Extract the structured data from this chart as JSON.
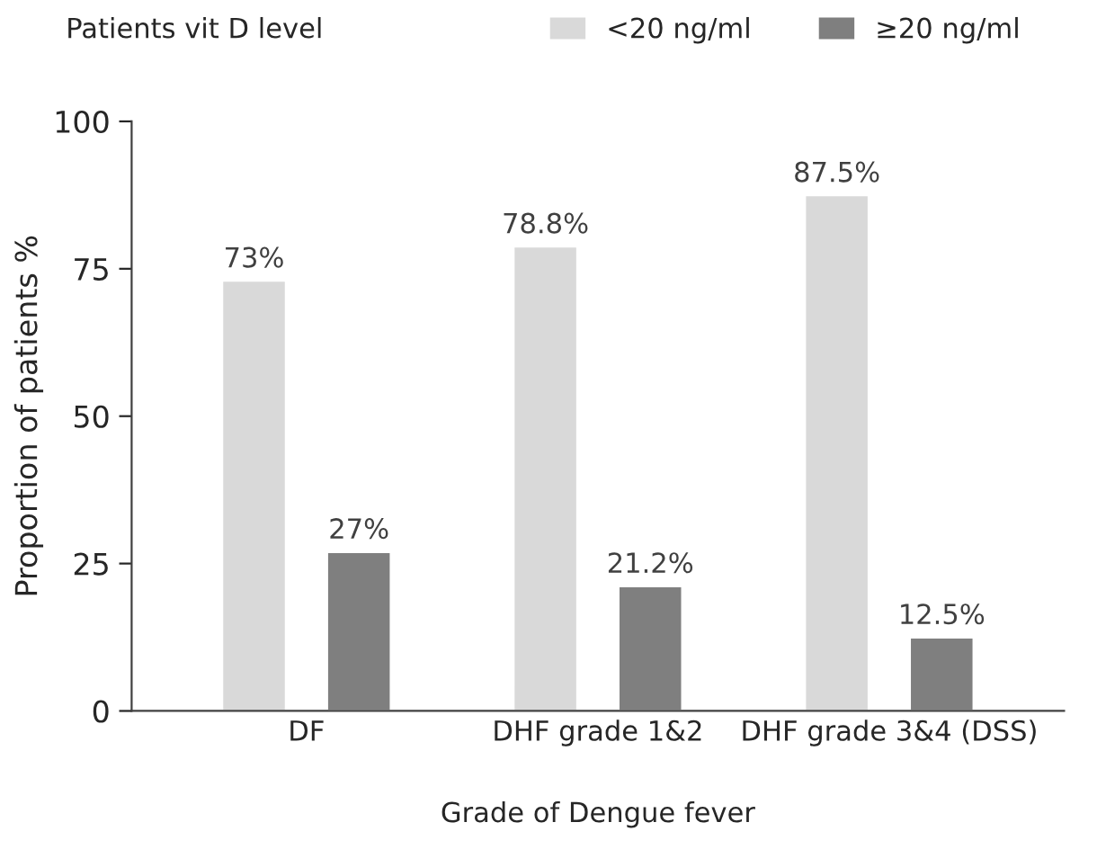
{
  "chart_data": {
    "type": "bar",
    "categories": [
      "DF",
      "DHF grade 1&2",
      "DHF grade 3&4 (DSS)"
    ],
    "series": [
      {
        "name": "<20 ng/ml",
        "color": "#d9d9d9",
        "values": [
          73,
          78.8,
          87.5
        ],
        "value_labels": [
          "73%",
          "78.8%",
          "87.5%"
        ]
      },
      {
        "name": "≥20 ng/ml",
        "color": "#7f7f7f",
        "values": [
          27,
          21.2,
          12.5
        ],
        "value_labels": [
          "27%",
          "21.2%",
          "12.5%"
        ]
      }
    ],
    "xlabel": "Grade of Dengue fever",
    "ylabel": "Proportion of patients %",
    "legend_title": "Patients vit D level",
    "legend": "top",
    "ylim": [
      0,
      100
    ],
    "yticks": [
      0,
      25,
      50,
      75,
      100
    ],
    "grid": false
  }
}
